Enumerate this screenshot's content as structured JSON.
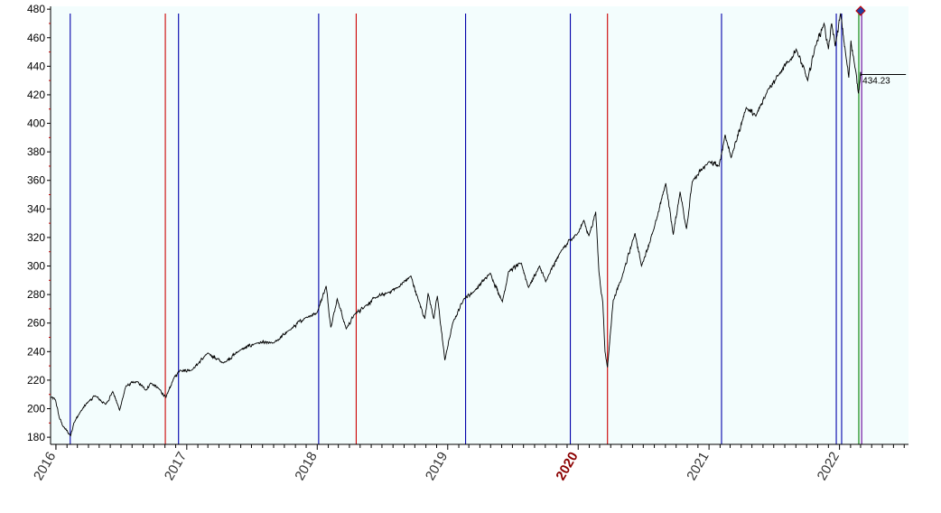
{
  "chart_data": {
    "type": "line",
    "title": "",
    "xlabel": "",
    "ylabel": "",
    "xlim": [
      "2015-12-17",
      "2022-07-13"
    ],
    "ylim": [
      175,
      482
    ],
    "ytick_values": [
      180,
      200,
      220,
      240,
      260,
      280,
      300,
      320,
      340,
      360,
      380,
      400,
      420,
      440,
      460,
      480
    ],
    "ytick_labels": [
      "180",
      "200",
      "220",
      "240",
      "260",
      "280",
      "300",
      "320",
      "340",
      "360",
      "380",
      "400",
      "420",
      "440",
      "460",
      "480"
    ],
    "xtick_labels": [
      {
        "date": "2016-01-01",
        "label": "2016",
        "highlight": false
      },
      {
        "date": "2017-01-01",
        "label": "2017",
        "highlight": false
      },
      {
        "date": "2018-01-01",
        "label": "2018",
        "highlight": false
      },
      {
        "date": "2019-01-01",
        "label": "2019",
        "highlight": false
      },
      {
        "date": "2020-01-01",
        "label": "2020",
        "highlight": true
      },
      {
        "date": "2021-01-01",
        "label": "2021",
        "highlight": false
      },
      {
        "date": "2022-01-01",
        "label": "2022",
        "highlight": false
      }
    ],
    "grid": false,
    "plot_background": "#f3fdfd",
    "series": [
      {
        "color": "#000000",
        "points": [
          [
            "2015-12-18",
            208
          ],
          [
            "2015-12-31",
            206
          ],
          [
            "2016-01-10",
            194
          ],
          [
            "2016-01-20",
            188
          ],
          [
            "2016-02-11",
            181
          ],
          [
            "2016-02-20",
            190
          ],
          [
            "2016-03-10",
            198
          ],
          [
            "2016-04-01",
            205
          ],
          [
            "2016-04-20",
            209
          ],
          [
            "2016-05-19",
            203
          ],
          [
            "2016-06-08",
            212
          ],
          [
            "2016-06-27",
            199
          ],
          [
            "2016-07-15",
            216
          ],
          [
            "2016-08-15",
            219
          ],
          [
            "2016-09-09",
            213
          ],
          [
            "2016-09-22",
            218
          ],
          [
            "2016-10-15",
            214
          ],
          [
            "2016-11-04",
            208
          ],
          [
            "2016-11-25",
            221
          ],
          [
            "2016-12-13",
            227
          ],
          [
            "2017-01-15",
            227
          ],
          [
            "2017-03-01",
            239
          ],
          [
            "2017-04-13",
            232
          ],
          [
            "2017-05-30",
            241
          ],
          [
            "2017-07-15",
            246
          ],
          [
            "2017-09-01",
            246
          ],
          [
            "2017-10-15",
            255
          ],
          [
            "2017-11-30",
            264
          ],
          [
            "2017-12-31",
            267
          ],
          [
            "2018-01-26",
            286
          ],
          [
            "2018-02-08",
            257
          ],
          [
            "2018-02-26",
            277
          ],
          [
            "2018-03-23",
            256
          ],
          [
            "2018-04-15",
            266
          ],
          [
            "2018-05-15",
            272
          ],
          [
            "2018-06-15",
            278
          ],
          [
            "2018-07-15",
            281
          ],
          [
            "2018-08-15",
            285
          ],
          [
            "2018-09-20",
            293
          ],
          [
            "2018-10-11",
            276
          ],
          [
            "2018-10-29",
            263
          ],
          [
            "2018-11-07",
            281
          ],
          [
            "2018-11-23",
            263
          ],
          [
            "2018-12-03",
            279
          ],
          [
            "2018-12-24",
            234
          ],
          [
            "2019-01-15",
            260
          ],
          [
            "2019-02-15",
            277
          ],
          [
            "2019-03-15",
            282
          ],
          [
            "2019-04-30",
            295
          ],
          [
            "2019-06-03",
            275
          ],
          [
            "2019-06-20",
            296
          ],
          [
            "2019-07-26",
            302
          ],
          [
            "2019-08-15",
            285
          ],
          [
            "2019-09-15",
            300
          ],
          [
            "2019-10-02",
            289
          ],
          [
            "2019-11-15",
            311
          ],
          [
            "2019-12-31",
            323
          ],
          [
            "2020-01-17",
            332
          ],
          [
            "2020-01-31",
            321
          ],
          [
            "2020-02-19",
            338
          ],
          [
            "2020-02-28",
            296
          ],
          [
            "2020-03-10",
            274
          ],
          [
            "2020-03-16",
            240
          ],
          [
            "2020-03-23",
            229
          ],
          [
            "2020-04-08",
            276
          ],
          [
            "2020-04-30",
            290
          ],
          [
            "2020-06-08",
            323
          ],
          [
            "2020-06-26",
            300
          ],
          [
            "2020-07-31",
            326
          ],
          [
            "2020-09-02",
            358
          ],
          [
            "2020-09-23",
            322
          ],
          [
            "2020-10-12",
            352
          ],
          [
            "2020-10-30",
            326
          ],
          [
            "2020-11-15",
            359
          ],
          [
            "2020-12-31",
            373
          ],
          [
            "2021-01-29",
            370
          ],
          [
            "2021-02-15",
            392
          ],
          [
            "2021-03-04",
            376
          ],
          [
            "2021-04-15",
            411
          ],
          [
            "2021-05-12",
            405
          ],
          [
            "2021-06-15",
            424
          ],
          [
            "2021-07-15",
            434
          ],
          [
            "2021-08-15",
            444
          ],
          [
            "2021-09-02",
            452
          ],
          [
            "2021-10-04",
            430
          ],
          [
            "2021-10-25",
            454
          ],
          [
            "2021-11-19",
            470
          ],
          [
            "2021-12-01",
            452
          ],
          [
            "2021-12-10",
            470
          ],
          [
            "2021-12-20",
            454
          ],
          [
            "2022-01-04",
            477
          ],
          [
            "2022-01-20",
            445
          ],
          [
            "2022-01-27",
            432
          ],
          [
            "2022-02-02",
            458
          ],
          [
            "2022-02-10",
            445
          ],
          [
            "2022-02-23",
            421
          ],
          [
            "2022-03-01",
            436
          ],
          [
            "2022-03-04",
            434.23
          ]
        ]
      }
    ],
    "vertical_lines": [
      {
        "date": "2016-02-10",
        "color": "#0000aa"
      },
      {
        "date": "2016-11-02",
        "color": "#cc0000"
      },
      {
        "date": "2016-12-09",
        "color": "#0000aa"
      },
      {
        "date": "2018-01-05",
        "color": "#0000aa"
      },
      {
        "date": "2018-04-20",
        "color": "#cc0000"
      },
      {
        "date": "2019-02-20",
        "color": "#0000aa"
      },
      {
        "date": "2019-12-10",
        "color": "#0000aa"
      },
      {
        "date": "2020-03-23",
        "color": "#cc0000"
      },
      {
        "date": "2021-02-05",
        "color": "#0000aa"
      },
      {
        "date": "2021-12-23",
        "color": "#0000aa"
      },
      {
        "date": "2022-01-07",
        "color": "#0000aa"
      },
      {
        "date": "2022-02-24",
        "color": "#008000"
      },
      {
        "date": "2022-03-04",
        "color": "#660099"
      }
    ],
    "last_value": {
      "value": 434.23,
      "label": "434.23"
    }
  }
}
